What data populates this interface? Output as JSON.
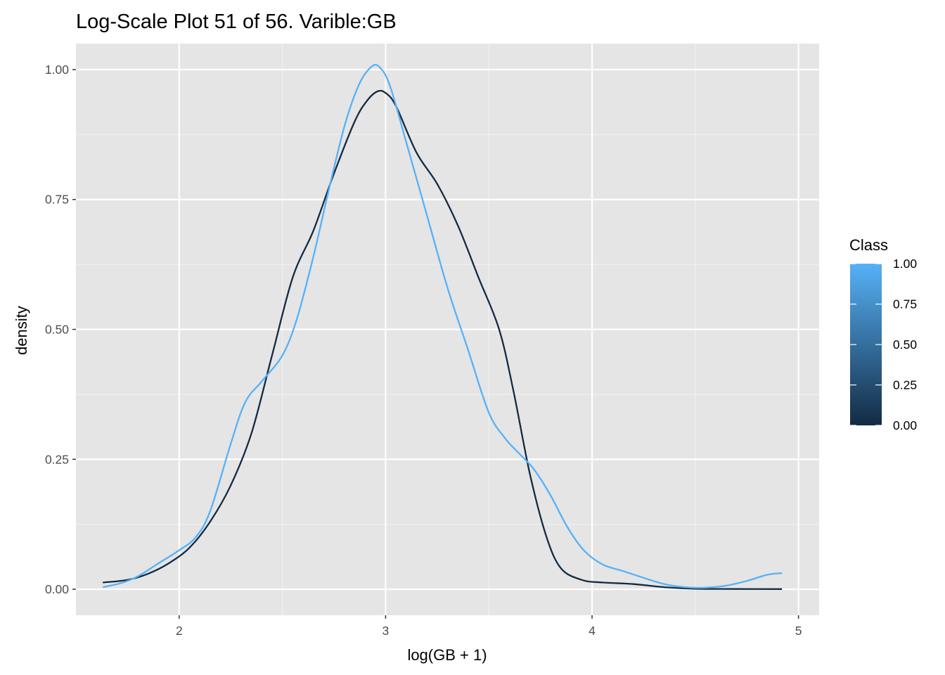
{
  "chart_data": {
    "type": "line",
    "title": "Log-Scale Plot 51 of 56. Varible:GB",
    "xlabel": "log(GB + 1)",
    "ylabel": "density",
    "xlim": [
      1.5,
      5.1
    ],
    "ylim": [
      -0.05,
      1.05
    ],
    "x_ticks": [
      2,
      3,
      4,
      5
    ],
    "x_tick_labels": [
      "2",
      "3",
      "4",
      "5"
    ],
    "y_ticks": [
      0,
      0.25,
      0.5,
      0.75,
      1.0
    ],
    "y_tick_labels": [
      "0.00",
      "0.25",
      "0.50",
      "0.75",
      "1.00"
    ],
    "grid": true,
    "legend": {
      "title": "Class",
      "type": "colorbar",
      "position": "right",
      "low_color": "#132B43",
      "high_color": "#56B1F7",
      "breaks": [
        0,
        0.25,
        0.5,
        0.75,
        1.0
      ],
      "labels": [
        "0.00",
        "0.25",
        "0.50",
        "0.75",
        "1.00"
      ]
    },
    "series": [
      {
        "class_value": 0,
        "color": "#132B43",
        "points": [
          [
            1.63,
            0.013
          ],
          [
            1.75,
            0.018
          ],
          [
            1.85,
            0.03
          ],
          [
            1.95,
            0.05
          ],
          [
            2.05,
            0.08
          ],
          [
            2.15,
            0.13
          ],
          [
            2.25,
            0.2
          ],
          [
            2.35,
            0.3
          ],
          [
            2.45,
            0.45
          ],
          [
            2.55,
            0.6
          ],
          [
            2.65,
            0.69
          ],
          [
            2.75,
            0.8
          ],
          [
            2.85,
            0.9
          ],
          [
            2.91,
            0.94
          ],
          [
            2.96,
            0.958
          ],
          [
            3.0,
            0.955
          ],
          [
            3.05,
            0.93
          ],
          [
            3.15,
            0.84
          ],
          [
            3.25,
            0.78
          ],
          [
            3.35,
            0.7
          ],
          [
            3.45,
            0.6
          ],
          [
            3.55,
            0.5
          ],
          [
            3.62,
            0.38
          ],
          [
            3.7,
            0.22
          ],
          [
            3.78,
            0.1
          ],
          [
            3.85,
            0.04
          ],
          [
            3.95,
            0.018
          ],
          [
            4.05,
            0.013
          ],
          [
            4.2,
            0.01
          ],
          [
            4.35,
            0.004
          ],
          [
            4.5,
            0.001
          ],
          [
            4.7,
            0.0005
          ],
          [
            4.92,
            0.0003
          ]
        ]
      },
      {
        "class_value": 1,
        "color": "#56B1F7",
        "points": [
          [
            1.63,
            0.004
          ],
          [
            1.72,
            0.012
          ],
          [
            1.8,
            0.025
          ],
          [
            1.9,
            0.05
          ],
          [
            2.0,
            0.075
          ],
          [
            2.08,
            0.1
          ],
          [
            2.15,
            0.15
          ],
          [
            2.25,
            0.28
          ],
          [
            2.32,
            0.36
          ],
          [
            2.4,
            0.4
          ],
          [
            2.5,
            0.45
          ],
          [
            2.57,
            0.52
          ],
          [
            2.65,
            0.64
          ],
          [
            2.72,
            0.76
          ],
          [
            2.8,
            0.89
          ],
          [
            2.87,
            0.97
          ],
          [
            2.93,
            1.005
          ],
          [
            2.97,
            1.005
          ],
          [
            3.02,
            0.97
          ],
          [
            3.1,
            0.86
          ],
          [
            3.2,
            0.72
          ],
          [
            3.3,
            0.58
          ],
          [
            3.4,
            0.46
          ],
          [
            3.5,
            0.34
          ],
          [
            3.58,
            0.29
          ],
          [
            3.65,
            0.26
          ],
          [
            3.72,
            0.23
          ],
          [
            3.8,
            0.18
          ],
          [
            3.88,
            0.12
          ],
          [
            3.96,
            0.075
          ],
          [
            4.05,
            0.048
          ],
          [
            4.15,
            0.035
          ],
          [
            4.25,
            0.022
          ],
          [
            4.35,
            0.01
          ],
          [
            4.45,
            0.004
          ],
          [
            4.55,
            0.003
          ],
          [
            4.65,
            0.007
          ],
          [
            4.75,
            0.016
          ],
          [
            4.85,
            0.028
          ],
          [
            4.92,
            0.031
          ]
        ]
      }
    ]
  },
  "colors": {
    "panel_background": "#e5e5e5",
    "grid_major": "#ffffff",
    "grid_minor": "#f2f2f2"
  }
}
